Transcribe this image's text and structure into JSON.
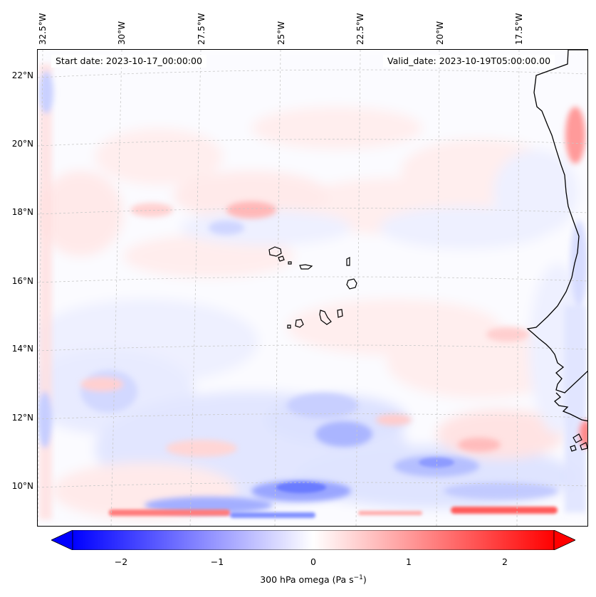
{
  "header": {
    "start_date": "Start date: 2023-10-17_00:00:00",
    "valid_date": "Valid_date: 2023-10-19T05:00:00.00"
  },
  "axes": {
    "lon_labels": [
      "32.5°W",
      "30°W",
      "27.5°W",
      "25°W",
      "22.5°W",
      "20°W",
      "17.5°W"
    ],
    "lat_labels": [
      "22°N",
      "20°N",
      "18°N",
      "16°N",
      "14°N",
      "12°N",
      "10°N"
    ]
  },
  "colorbar": {
    "label": "300 hPa omega (Pa s",
    "label_sup": "−1",
    "label_end": ")",
    "ticks": [
      "−2",
      "−1",
      "0",
      "1",
      "2"
    ],
    "range": [
      -2.75,
      2.75
    ],
    "low_color": "#0000ff",
    "high_color": "#ff0000"
  },
  "colors": {
    "coastline": "#000000",
    "gridline": "#c8c8c8"
  }
}
